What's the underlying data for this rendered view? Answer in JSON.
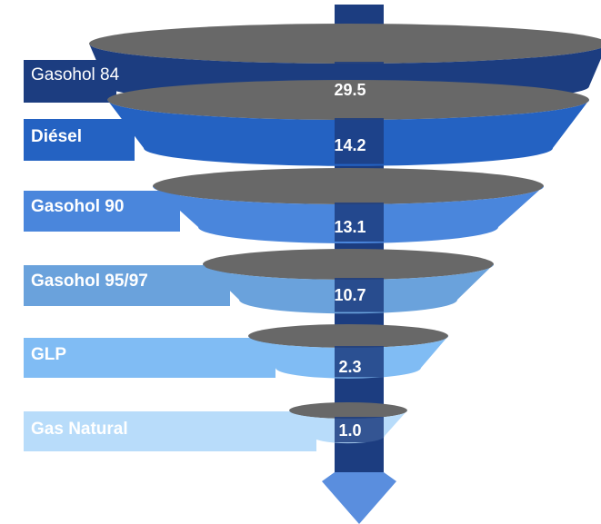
{
  "chart_data": {
    "type": "funnel",
    "title": "",
    "categories": [
      "Gasohol 84",
      "Diésel",
      "Gasohol 90",
      "Gasohol 95/97",
      "GLP",
      "Gas Natural"
    ],
    "values": [
      29.5,
      14.2,
      13.1,
      10.7,
      2.3,
      1.0
    ],
    "value_labels": [
      "29.5",
      "14.2",
      "13.1",
      "10.7",
      "2.3",
      "1.0"
    ],
    "colors": [
      "#1c3d80",
      "#2462c2",
      "#4a86dc",
      "#6aa2dc",
      "#80bcf4",
      "#b8dcfa"
    ],
    "rim_color": "#686868",
    "center_bar_color": "#1c3d80",
    "arrow_color": "#5a8ede"
  }
}
